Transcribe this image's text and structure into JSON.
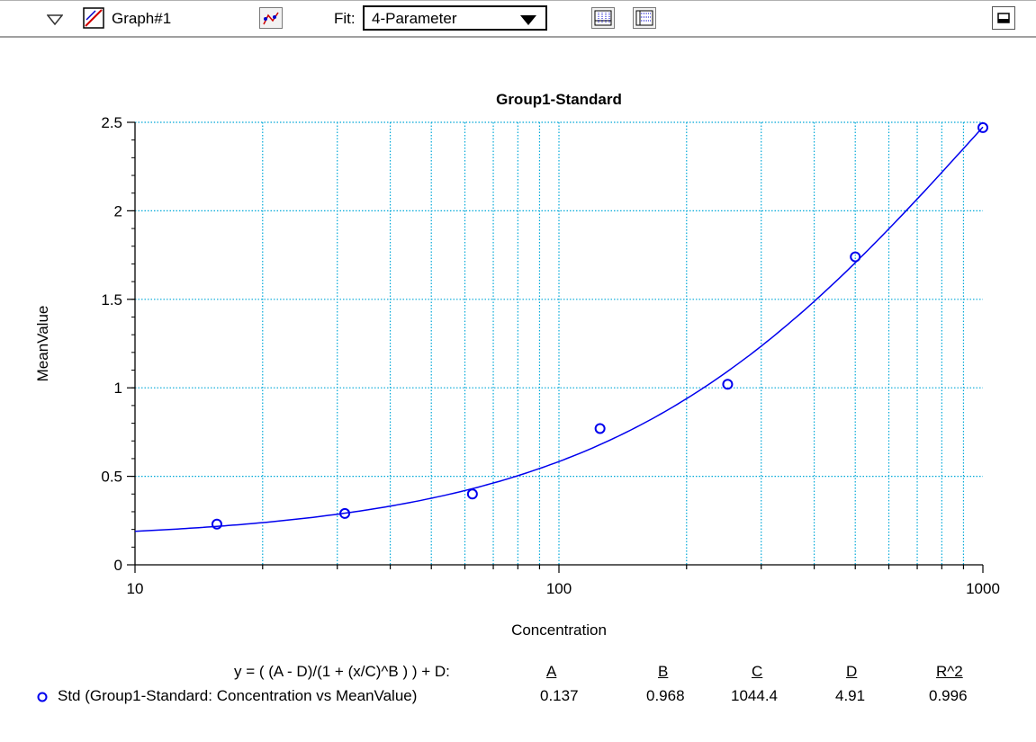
{
  "toolbar": {
    "graph_name": "Graph#1",
    "fit_label": "Fit:",
    "fit_value": "4-Parameter"
  },
  "equation": {
    "formula": "y = ( (A - D)/(1 + (x/C)^B ) ) + D:",
    "param_headers": [
      "A",
      "B",
      "C",
      "D",
      "R^2"
    ]
  },
  "legend": {
    "entries": [
      {
        "label": "Std (Group1-Standard: Concentration vs MeanValue)",
        "params": [
          "0.137",
          "0.968",
          "1044.4",
          "4.91",
          "0.996"
        ]
      }
    ]
  },
  "colors": {
    "series": "#0000ee",
    "grid": "#00a8d8",
    "axis": "#000000"
  },
  "chart_data": {
    "type": "scatter",
    "title": "Group1-Standard",
    "xlabel": "Concentration",
    "ylabel": "MeanValue",
    "xscale": "log",
    "xlim": [
      10,
      1000
    ],
    "ylim": [
      0,
      2.5
    ],
    "x_ticks": [
      10,
      100,
      1000
    ],
    "x_tick_labels": [
      "10",
      "100",
      "1000"
    ],
    "y_ticks": [
      0,
      0.5,
      1,
      1.5,
      2,
      2.5
    ],
    "y_tick_labels": [
      "0",
      "0.5",
      "1",
      "1.5",
      "2",
      "2.5"
    ],
    "grid": true,
    "series": [
      {
        "x": [
          15.6,
          31.25,
          62.5,
          125,
          250,
          500,
          1000
        ],
        "y": [
          0.23,
          0.29,
          0.4,
          0.77,
          1.02,
          1.74,
          2.47
        ]
      }
    ],
    "fit": {
      "model": "4-Parameter",
      "A": 0.137,
      "B": 0.968,
      "C": 1044.4,
      "D": 4.91,
      "R2": 0.996
    }
  }
}
